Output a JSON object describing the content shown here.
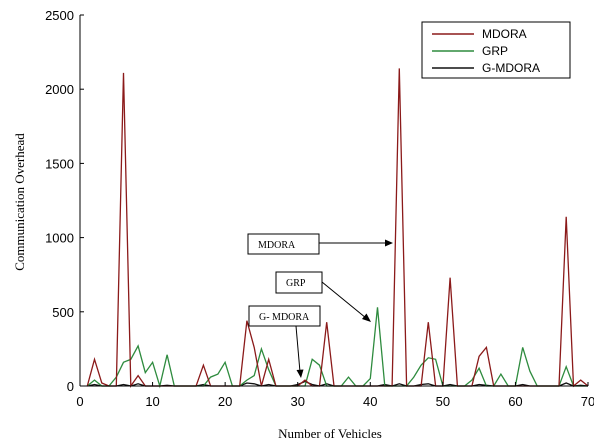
{
  "chart_data": {
    "type": "line",
    "title": "",
    "xlabel": "Number of Vehicles",
    "ylabel": "Communication Overhead",
    "xlim": [
      0,
      70
    ],
    "ylim": [
      0,
      2500
    ],
    "xticks": [
      0,
      10,
      20,
      30,
      40,
      50,
      60,
      70
    ],
    "yticks": [
      0,
      500,
      1000,
      1500,
      2000,
      2500
    ],
    "grid": false,
    "legend_position": "top-right",
    "series": [
      {
        "name": "MDORA",
        "color": "#8b1a1a",
        "x": [
          1,
          2,
          3,
          4,
          5,
          6,
          7,
          8,
          9,
          10,
          11,
          12,
          13,
          14,
          15,
          16,
          17,
          18,
          19,
          20,
          21,
          22,
          23,
          24,
          25,
          26,
          27,
          28,
          29,
          30,
          31,
          32,
          33,
          34,
          35,
          36,
          37,
          38,
          39,
          40,
          41,
          42,
          43,
          44,
          45,
          46,
          47,
          48,
          49,
          50,
          51,
          52,
          53,
          54,
          55,
          56,
          57,
          58,
          59,
          60,
          61,
          62,
          63,
          64,
          65,
          66,
          67,
          68,
          69,
          70
        ],
        "y": [
          0,
          180,
          20,
          0,
          0,
          2110,
          0,
          70,
          0,
          0,
          0,
          0,
          0,
          0,
          0,
          0,
          140,
          0,
          0,
          0,
          0,
          0,
          440,
          260,
          0,
          180,
          0,
          0,
          0,
          0,
          40,
          0,
          0,
          430,
          0,
          0,
          0,
          0,
          0,
          0,
          0,
          0,
          0,
          2140,
          0,
          0,
          0,
          430,
          0,
          0,
          730,
          0,
          0,
          0,
          200,
          260,
          0,
          0,
          0,
          0,
          0,
          0,
          0,
          0,
          0,
          0,
          1140,
          0,
          40,
          0
        ]
      },
      {
        "name": "GRP",
        "color": "#2e8b3e",
        "x": [
          1,
          2,
          3,
          4,
          5,
          6,
          7,
          8,
          9,
          10,
          11,
          12,
          13,
          14,
          15,
          16,
          17,
          18,
          19,
          20,
          21,
          22,
          23,
          24,
          25,
          26,
          27,
          28,
          29,
          30,
          31,
          32,
          33,
          34,
          35,
          36,
          37,
          38,
          39,
          40,
          41,
          42,
          43,
          44,
          45,
          46,
          47,
          48,
          49,
          50,
          51,
          52,
          53,
          54,
          55,
          56,
          57,
          58,
          59,
          60,
          61,
          62,
          63,
          64,
          65,
          66,
          67,
          68,
          69,
          70
        ],
        "y": [
          0,
          40,
          0,
          0,
          60,
          160,
          180,
          270,
          90,
          160,
          0,
          210,
          0,
          0,
          0,
          0,
          0,
          60,
          80,
          160,
          0,
          0,
          40,
          70,
          250,
          110,
          0,
          0,
          0,
          0,
          0,
          180,
          140,
          0,
          0,
          0,
          60,
          0,
          0,
          50,
          530,
          0,
          0,
          0,
          0,
          60,
          140,
          190,
          180,
          0,
          0,
          0,
          0,
          40,
          120,
          0,
          0,
          80,
          0,
          0,
          260,
          100,
          0,
          0,
          0,
          0,
          130,
          0,
          0,
          0
        ]
      },
      {
        "name": "G-MDORA",
        "color": "#111111",
        "x": [
          1,
          2,
          3,
          4,
          5,
          6,
          7,
          8,
          9,
          10,
          11,
          12,
          13,
          14,
          15,
          16,
          17,
          18,
          19,
          20,
          21,
          22,
          23,
          24,
          25,
          26,
          27,
          28,
          29,
          30,
          31,
          32,
          33,
          34,
          35,
          36,
          37,
          38,
          39,
          40,
          41,
          42,
          43,
          44,
          45,
          46,
          47,
          48,
          49,
          50,
          51,
          52,
          53,
          54,
          55,
          56,
          57,
          58,
          59,
          60,
          61,
          62,
          63,
          64,
          65,
          66,
          67,
          68,
          69,
          70
        ],
        "y": [
          0,
          10,
          0,
          0,
          0,
          10,
          0,
          15,
          0,
          0,
          0,
          5,
          0,
          0,
          0,
          0,
          10,
          0,
          0,
          0,
          0,
          0,
          20,
          15,
          0,
          10,
          0,
          0,
          0,
          10,
          30,
          10,
          0,
          15,
          0,
          0,
          0,
          0,
          0,
          0,
          0,
          10,
          0,
          15,
          0,
          0,
          10,
          15,
          0,
          0,
          10,
          0,
          0,
          0,
          10,
          5,
          0,
          0,
          0,
          0,
          10,
          0,
          0,
          0,
          0,
          0,
          20,
          0,
          5,
          0
        ]
      }
    ],
    "annotations": [
      {
        "text": "MDORA",
        "x": 44
      },
      {
        "text": "GRP",
        "x": 40.5
      },
      {
        "text": "G- MDORA",
        "x": 31
      }
    ]
  }
}
